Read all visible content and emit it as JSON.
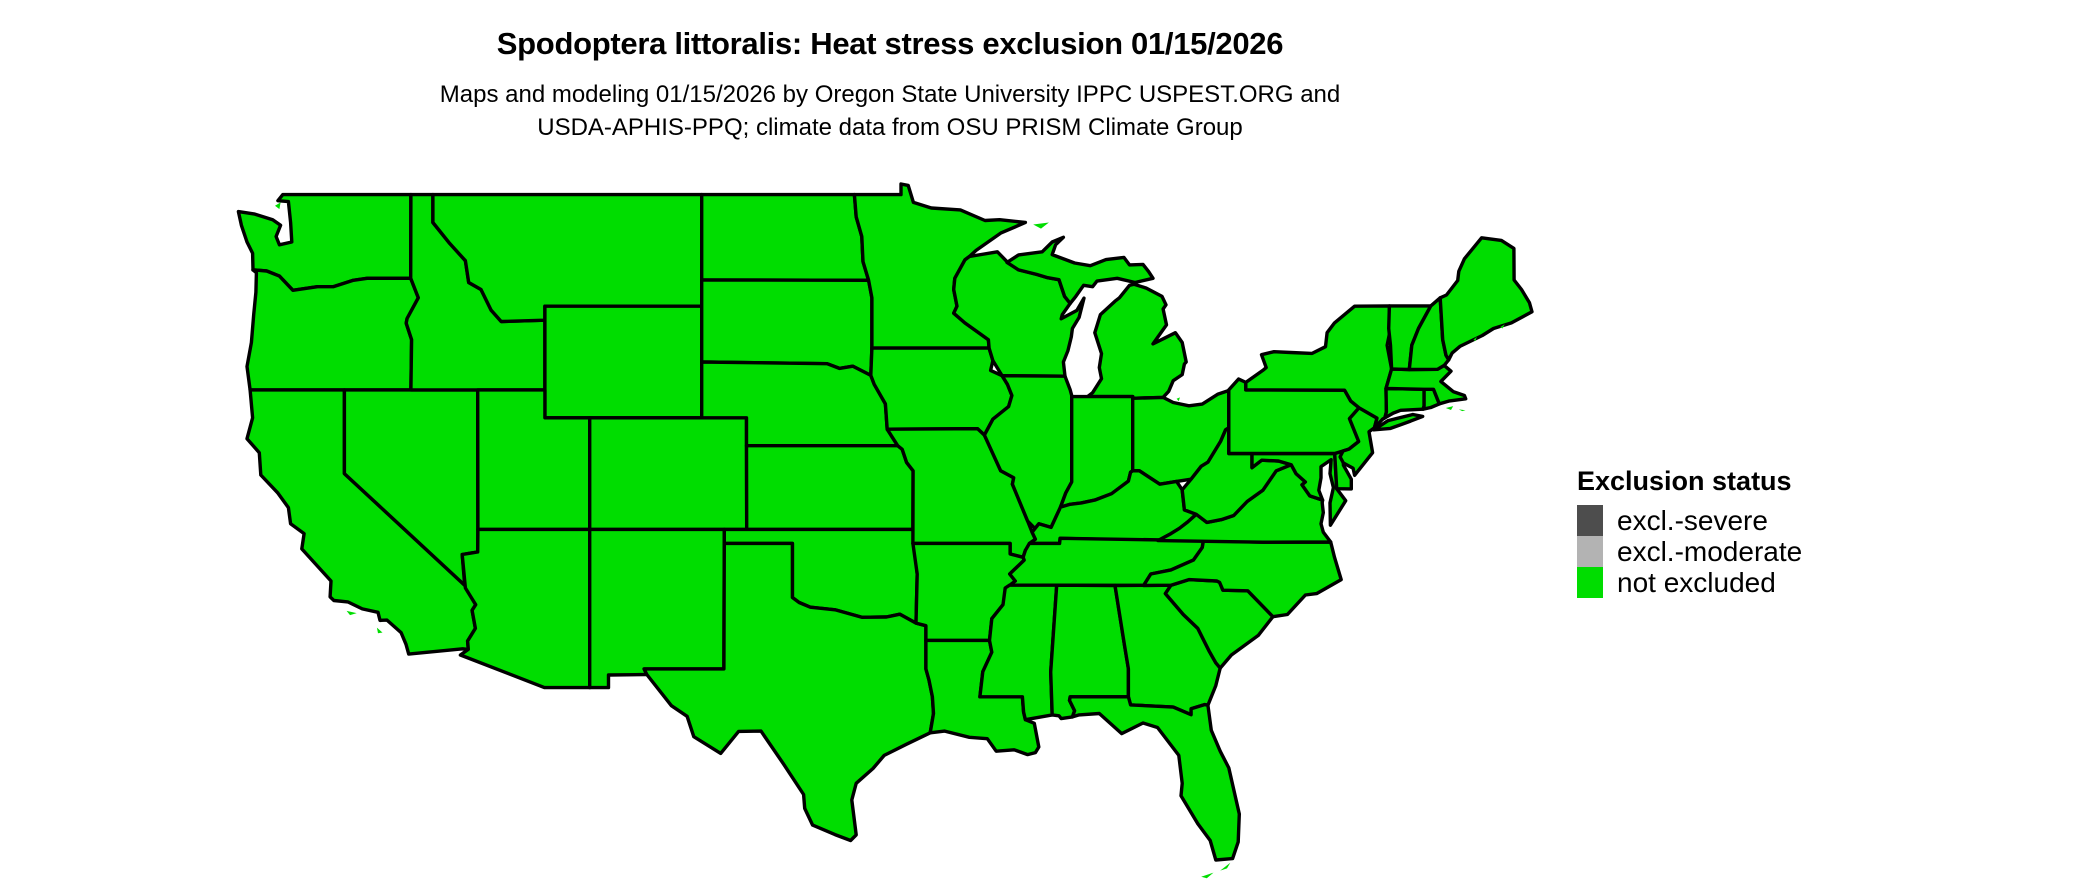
{
  "header": {
    "title": "Spodoptera littoralis: Heat stress exclusion 01/15/2026",
    "subtitle_line1": "Maps and modeling 01/15/2026 by Oregon State University IPPC USPEST.ORG and",
    "subtitle_line2": "USDA-APHIS-PPQ; climate data from OSU PRISM Climate Group"
  },
  "legend": {
    "title": "Exclusion status",
    "items": [
      {
        "label": "excl.-severe",
        "color": "#4d4d4d"
      },
      {
        "label": "excl.-moderate",
        "color": "#b3b3b3"
      },
      {
        "label": "not excluded",
        "color": "#00dd00"
      }
    ]
  },
  "map": {
    "all_states_status": "not excluded",
    "fill_color": "#00dd00",
    "border_color": "#000000",
    "background_color": "#ffffff"
  }
}
